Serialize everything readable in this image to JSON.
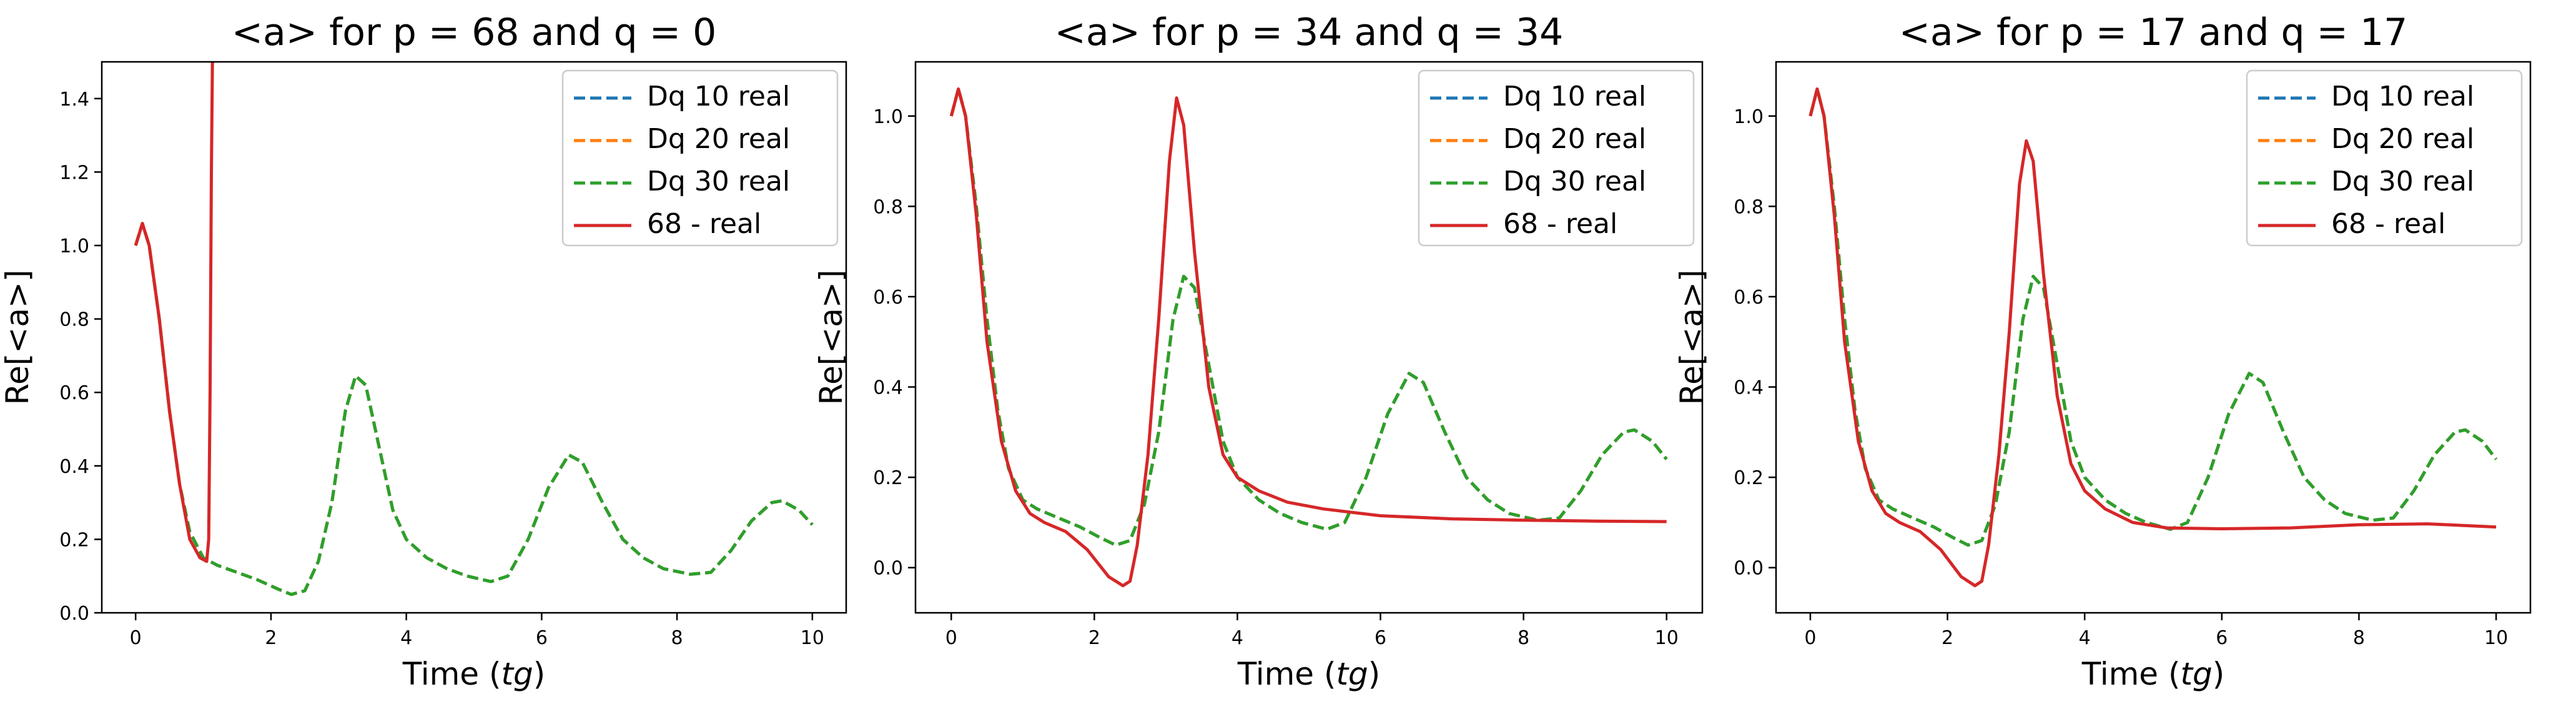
{
  "chart_data": [
    {
      "type": "line",
      "title": "<a> for p = 68 and q = 0",
      "xlabel": "Time (tg)",
      "ylabel": "Re[<a>]",
      "xlim": [
        -0.5,
        10.5
      ],
      "ylim": [
        0.0,
        1.5
      ],
      "xticks": [
        0,
        2,
        4,
        6,
        8,
        10
      ],
      "yticks": [
        0.0,
        0.2,
        0.4,
        0.6,
        0.8,
        1.0,
        1.2,
        1.4
      ],
      "grid": false,
      "legend": "top-right",
      "series": [
        {
          "name": "Dq 10 real",
          "color": "#1f77b4",
          "style": "dashed",
          "x": [
            0,
            0.1,
            0.2,
            0.35,
            0.5,
            0.65,
            0.8,
            1.0,
            1.2,
            1.5,
            1.8,
            2.1,
            2.3,
            2.5,
            2.7,
            2.9,
            3.1,
            3.25,
            3.4,
            3.6,
            3.8,
            4.0,
            4.3,
            4.6,
            4.9,
            5.25,
            5.5,
            5.8,
            6.1,
            6.4,
            6.6,
            6.9,
            7.2,
            7.5,
            7.8,
            8.2,
            8.5,
            8.8,
            9.1,
            9.4,
            9.55,
            9.8,
            10.0
          ],
          "y": [
            1.0,
            1.06,
            1.0,
            0.8,
            0.55,
            0.35,
            0.22,
            0.15,
            0.13,
            0.11,
            0.09,
            0.065,
            0.05,
            0.06,
            0.14,
            0.3,
            0.55,
            0.645,
            0.62,
            0.45,
            0.28,
            0.2,
            0.15,
            0.12,
            0.1,
            0.085,
            0.1,
            0.2,
            0.34,
            0.43,
            0.41,
            0.3,
            0.2,
            0.15,
            0.12,
            0.105,
            0.11,
            0.17,
            0.25,
            0.3,
            0.305,
            0.28,
            0.24
          ]
        },
        {
          "name": "Dq 20 real",
          "color": "#ff7f0e",
          "style": "dashed",
          "x": [
            0,
            0.1,
            0.2,
            0.35,
            0.5,
            0.65,
            0.8,
            1.0,
            1.2,
            1.5,
            1.8,
            2.1,
            2.3,
            2.5,
            2.7,
            2.9,
            3.1,
            3.25,
            3.4,
            3.6,
            3.8,
            4.0,
            4.3,
            4.6,
            4.9,
            5.25,
            5.5,
            5.8,
            6.1,
            6.4,
            6.6,
            6.9,
            7.2,
            7.5,
            7.8,
            8.2,
            8.5,
            8.8,
            9.1,
            9.4,
            9.55,
            9.8,
            10.0
          ],
          "y": [
            1.0,
            1.06,
            1.0,
            0.8,
            0.55,
            0.35,
            0.22,
            0.15,
            0.13,
            0.11,
            0.09,
            0.065,
            0.05,
            0.06,
            0.14,
            0.3,
            0.55,
            0.645,
            0.62,
            0.45,
            0.28,
            0.2,
            0.15,
            0.12,
            0.1,
            0.085,
            0.1,
            0.2,
            0.34,
            0.43,
            0.41,
            0.3,
            0.2,
            0.15,
            0.12,
            0.105,
            0.11,
            0.17,
            0.25,
            0.3,
            0.305,
            0.28,
            0.24
          ]
        },
        {
          "name": "Dq 30 real",
          "color": "#2ca02c",
          "style": "dashed",
          "x": [
            0,
            0.1,
            0.2,
            0.35,
            0.5,
            0.65,
            0.8,
            1.0,
            1.2,
            1.5,
            1.8,
            2.1,
            2.3,
            2.5,
            2.7,
            2.9,
            3.1,
            3.25,
            3.4,
            3.6,
            3.8,
            4.0,
            4.3,
            4.6,
            4.9,
            5.25,
            5.5,
            5.8,
            6.1,
            6.4,
            6.6,
            6.9,
            7.2,
            7.5,
            7.8,
            8.2,
            8.5,
            8.8,
            9.1,
            9.4,
            9.55,
            9.8,
            10.0
          ],
          "y": [
            1.0,
            1.06,
            1.0,
            0.8,
            0.55,
            0.35,
            0.22,
            0.15,
            0.13,
            0.11,
            0.09,
            0.065,
            0.05,
            0.06,
            0.14,
            0.3,
            0.55,
            0.645,
            0.62,
            0.45,
            0.28,
            0.2,
            0.15,
            0.12,
            0.1,
            0.085,
            0.1,
            0.2,
            0.34,
            0.43,
            0.41,
            0.3,
            0.2,
            0.15,
            0.12,
            0.105,
            0.11,
            0.17,
            0.25,
            0.3,
            0.305,
            0.28,
            0.24
          ]
        },
        {
          "name": "68 - real",
          "color": "#d62728",
          "style": "solid",
          "x": [
            0,
            0.1,
            0.2,
            0.35,
            0.5,
            0.65,
            0.8,
            0.95,
            1.05,
            1.08,
            1.1,
            1.12,
            1.14
          ],
          "y": [
            1.0,
            1.06,
            1.0,
            0.8,
            0.55,
            0.35,
            0.2,
            0.15,
            0.14,
            0.2,
            0.6,
            1.2,
            1.6
          ]
        }
      ]
    },
    {
      "type": "line",
      "title": "<a> for p = 34 and q = 34",
      "xlabel": "Time (tg)",
      "ylabel": "Re[<a>]",
      "xlim": [
        -0.5,
        10.5
      ],
      "ylim": [
        -0.1,
        1.12
      ],
      "xticks": [
        0,
        2,
        4,
        6,
        8,
        10
      ],
      "yticks": [
        0.0,
        0.2,
        0.4,
        0.6,
        0.8,
        1.0
      ],
      "grid": false,
      "legend": "top-right",
      "series": [
        {
          "name": "Dq 10 real",
          "color": "#1f77b4",
          "style": "dashed",
          "x": [
            0,
            0.1,
            0.2,
            0.35,
            0.5,
            0.65,
            0.8,
            1.0,
            1.2,
            1.5,
            1.8,
            2.1,
            2.3,
            2.5,
            2.7,
            2.9,
            3.1,
            3.25,
            3.4,
            3.6,
            3.8,
            4.0,
            4.3,
            4.6,
            4.9,
            5.25,
            5.5,
            5.8,
            6.1,
            6.4,
            6.6,
            6.9,
            7.2,
            7.5,
            7.8,
            8.2,
            8.5,
            8.8,
            9.1,
            9.4,
            9.55,
            9.8,
            10.0
          ],
          "y": [
            1.0,
            1.06,
            1.0,
            0.8,
            0.55,
            0.35,
            0.22,
            0.15,
            0.13,
            0.11,
            0.09,
            0.065,
            0.05,
            0.06,
            0.14,
            0.3,
            0.55,
            0.645,
            0.62,
            0.45,
            0.28,
            0.2,
            0.15,
            0.12,
            0.1,
            0.085,
            0.1,
            0.2,
            0.34,
            0.43,
            0.41,
            0.3,
            0.2,
            0.15,
            0.12,
            0.105,
            0.11,
            0.17,
            0.25,
            0.3,
            0.305,
            0.28,
            0.24
          ]
        },
        {
          "name": "Dq 20 real",
          "color": "#ff7f0e",
          "style": "dashed",
          "x": [
            0,
            0.1,
            0.2,
            0.35,
            0.5,
            0.65,
            0.8,
            1.0,
            1.2,
            1.5,
            1.8,
            2.1,
            2.3,
            2.5,
            2.7,
            2.9,
            3.1,
            3.25,
            3.4,
            3.6,
            3.8,
            4.0,
            4.3,
            4.6,
            4.9,
            5.25,
            5.5,
            5.8,
            6.1,
            6.4,
            6.6,
            6.9,
            7.2,
            7.5,
            7.8,
            8.2,
            8.5,
            8.8,
            9.1,
            9.4,
            9.55,
            9.8,
            10.0
          ],
          "y": [
            1.0,
            1.06,
            1.0,
            0.8,
            0.55,
            0.35,
            0.22,
            0.15,
            0.13,
            0.11,
            0.09,
            0.065,
            0.05,
            0.06,
            0.14,
            0.3,
            0.55,
            0.645,
            0.62,
            0.45,
            0.28,
            0.2,
            0.15,
            0.12,
            0.1,
            0.085,
            0.1,
            0.2,
            0.34,
            0.43,
            0.41,
            0.3,
            0.2,
            0.15,
            0.12,
            0.105,
            0.11,
            0.17,
            0.25,
            0.3,
            0.305,
            0.28,
            0.24
          ]
        },
        {
          "name": "Dq 30 real",
          "color": "#2ca02c",
          "style": "dashed",
          "x": [
            0,
            0.1,
            0.2,
            0.35,
            0.5,
            0.65,
            0.8,
            1.0,
            1.2,
            1.5,
            1.8,
            2.1,
            2.3,
            2.5,
            2.7,
            2.9,
            3.1,
            3.25,
            3.4,
            3.6,
            3.8,
            4.0,
            4.3,
            4.6,
            4.9,
            5.25,
            5.5,
            5.8,
            6.1,
            6.4,
            6.6,
            6.9,
            7.2,
            7.5,
            7.8,
            8.2,
            8.5,
            8.8,
            9.1,
            9.4,
            9.55,
            9.8,
            10.0
          ],
          "y": [
            1.0,
            1.06,
            1.0,
            0.8,
            0.55,
            0.35,
            0.22,
            0.15,
            0.13,
            0.11,
            0.09,
            0.065,
            0.05,
            0.06,
            0.14,
            0.3,
            0.55,
            0.645,
            0.62,
            0.45,
            0.28,
            0.2,
            0.15,
            0.12,
            0.1,
            0.085,
            0.1,
            0.2,
            0.34,
            0.43,
            0.41,
            0.3,
            0.2,
            0.15,
            0.12,
            0.105,
            0.11,
            0.17,
            0.25,
            0.3,
            0.305,
            0.28,
            0.24
          ]
        },
        {
          "name": "68 - real",
          "color": "#d62728",
          "style": "solid",
          "x": [
            0,
            0.1,
            0.2,
            0.35,
            0.5,
            0.7,
            0.9,
            1.1,
            1.3,
            1.6,
            1.9,
            2.2,
            2.4,
            2.5,
            2.6,
            2.75,
            2.9,
            3.05,
            3.15,
            3.25,
            3.4,
            3.6,
            3.8,
            4.0,
            4.3,
            4.7,
            5.2,
            6.0,
            7.0,
            8.0,
            9.0,
            10.0
          ],
          "y": [
            1.0,
            1.06,
            1.0,
            0.78,
            0.5,
            0.28,
            0.17,
            0.12,
            0.1,
            0.08,
            0.04,
            -0.02,
            -0.04,
            -0.03,
            0.05,
            0.25,
            0.55,
            0.9,
            1.04,
            0.98,
            0.7,
            0.4,
            0.25,
            0.2,
            0.17,
            0.145,
            0.13,
            0.115,
            0.108,
            0.105,
            0.103,
            0.102
          ]
        }
      ]
    },
    {
      "type": "line",
      "title": "<a> for p = 17 and q = 17",
      "xlabel": "Time (tg)",
      "ylabel": "Re[<a>]",
      "xlim": [
        -0.5,
        10.5
      ],
      "ylim": [
        -0.1,
        1.12
      ],
      "xticks": [
        0,
        2,
        4,
        6,
        8,
        10
      ],
      "yticks": [
        0.0,
        0.2,
        0.4,
        0.6,
        0.8,
        1.0
      ],
      "grid": false,
      "legend": "top-right",
      "series": [
        {
          "name": "Dq 10 real",
          "color": "#1f77b4",
          "style": "dashed",
          "x": [
            0,
            0.1,
            0.2,
            0.35,
            0.5,
            0.65,
            0.8,
            1.0,
            1.2,
            1.5,
            1.8,
            2.1,
            2.3,
            2.5,
            2.7,
            2.9,
            3.1,
            3.25,
            3.4,
            3.6,
            3.8,
            4.0,
            4.3,
            4.6,
            4.9,
            5.25,
            5.5,
            5.8,
            6.1,
            6.4,
            6.6,
            6.9,
            7.2,
            7.5,
            7.8,
            8.2,
            8.5,
            8.8,
            9.1,
            9.4,
            9.55,
            9.8,
            10.0
          ],
          "y": [
            1.0,
            1.06,
            1.0,
            0.8,
            0.55,
            0.35,
            0.22,
            0.15,
            0.13,
            0.11,
            0.09,
            0.065,
            0.05,
            0.06,
            0.14,
            0.3,
            0.55,
            0.645,
            0.62,
            0.45,
            0.28,
            0.2,
            0.15,
            0.12,
            0.1,
            0.085,
            0.1,
            0.2,
            0.34,
            0.43,
            0.41,
            0.3,
            0.2,
            0.15,
            0.12,
            0.105,
            0.11,
            0.17,
            0.25,
            0.3,
            0.305,
            0.28,
            0.24
          ]
        },
        {
          "name": "Dq 20 real",
          "color": "#ff7f0e",
          "style": "dashed",
          "x": [
            0,
            0.1,
            0.2,
            0.35,
            0.5,
            0.65,
            0.8,
            1.0,
            1.2,
            1.5,
            1.8,
            2.1,
            2.3,
            2.5,
            2.7,
            2.9,
            3.1,
            3.25,
            3.4,
            3.6,
            3.8,
            4.0,
            4.3,
            4.6,
            4.9,
            5.25,
            5.5,
            5.8,
            6.1,
            6.4,
            6.6,
            6.9,
            7.2,
            7.5,
            7.8,
            8.2,
            8.5,
            8.8,
            9.1,
            9.4,
            9.55,
            9.8,
            10.0
          ],
          "y": [
            1.0,
            1.06,
            1.0,
            0.8,
            0.55,
            0.35,
            0.22,
            0.15,
            0.13,
            0.11,
            0.09,
            0.065,
            0.05,
            0.06,
            0.14,
            0.3,
            0.55,
            0.645,
            0.62,
            0.45,
            0.28,
            0.2,
            0.15,
            0.12,
            0.1,
            0.085,
            0.1,
            0.2,
            0.34,
            0.43,
            0.41,
            0.3,
            0.2,
            0.15,
            0.12,
            0.105,
            0.11,
            0.17,
            0.25,
            0.3,
            0.305,
            0.28,
            0.24
          ]
        },
        {
          "name": "Dq 30 real",
          "color": "#2ca02c",
          "style": "dashed",
          "x": [
            0,
            0.1,
            0.2,
            0.35,
            0.5,
            0.65,
            0.8,
            1.0,
            1.2,
            1.5,
            1.8,
            2.1,
            2.3,
            2.5,
            2.7,
            2.9,
            3.1,
            3.25,
            3.4,
            3.6,
            3.8,
            4.0,
            4.3,
            4.6,
            4.9,
            5.25,
            5.5,
            5.8,
            6.1,
            6.4,
            6.6,
            6.9,
            7.2,
            7.5,
            7.8,
            8.2,
            8.5,
            8.8,
            9.1,
            9.4,
            9.55,
            9.8,
            10.0
          ],
          "y": [
            1.0,
            1.06,
            1.0,
            0.8,
            0.55,
            0.35,
            0.22,
            0.15,
            0.13,
            0.11,
            0.09,
            0.065,
            0.05,
            0.06,
            0.14,
            0.3,
            0.55,
            0.645,
            0.62,
            0.45,
            0.28,
            0.2,
            0.15,
            0.12,
            0.1,
            0.085,
            0.1,
            0.2,
            0.34,
            0.43,
            0.41,
            0.3,
            0.2,
            0.15,
            0.12,
            0.105,
            0.11,
            0.17,
            0.25,
            0.3,
            0.305,
            0.28,
            0.24
          ]
        },
        {
          "name": "68 - real",
          "color": "#d62728",
          "style": "solid",
          "x": [
            0,
            0.1,
            0.2,
            0.35,
            0.5,
            0.7,
            0.9,
            1.1,
            1.3,
            1.6,
            1.9,
            2.2,
            2.4,
            2.5,
            2.6,
            2.75,
            2.9,
            3.05,
            3.15,
            3.25,
            3.4,
            3.6,
            3.8,
            4.0,
            4.3,
            4.7,
            5.2,
            6.0,
            7.0,
            8.0,
            9.0,
            10.0
          ],
          "y": [
            1.0,
            1.06,
            1.0,
            0.78,
            0.5,
            0.28,
            0.17,
            0.12,
            0.1,
            0.08,
            0.04,
            -0.02,
            -0.04,
            -0.03,
            0.05,
            0.25,
            0.52,
            0.85,
            0.945,
            0.9,
            0.65,
            0.38,
            0.23,
            0.17,
            0.13,
            0.1,
            0.088,
            0.086,
            0.088,
            0.095,
            0.097,
            0.09
          ]
        }
      ]
    }
  ]
}
